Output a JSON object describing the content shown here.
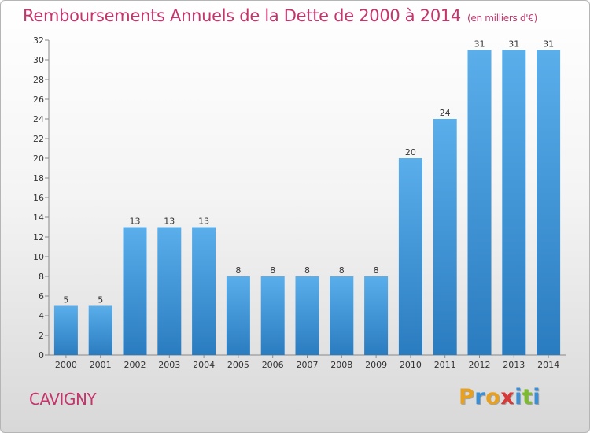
{
  "header": {
    "title": "Remboursements Annuels de la Dette de 2000 à 2014",
    "unit": "(en milliers d'€)"
  },
  "footer": {
    "commune": "CAVIGNY",
    "logo": "Proxiti"
  },
  "colors": {
    "title": "#c4356c",
    "bar_light": "#5aaeea",
    "bar_dark": "#2a7cc0",
    "logo_letters": [
      "#e8a020",
      "#3b8fd6",
      "#e8a020",
      "#d93838",
      "#3b8fd6",
      "#7cba2e",
      "#3b8fd6"
    ]
  },
  "chart_data": {
    "type": "bar",
    "title": "Remboursements Annuels de la Dette de 2000 à 2014",
    "xlabel": "",
    "ylabel": "",
    "categories": [
      "2000",
      "2001",
      "2002",
      "2003",
      "2004",
      "2005",
      "2006",
      "2007",
      "2008",
      "2009",
      "2010",
      "2011",
      "2012",
      "2013",
      "2014"
    ],
    "values": [
      5,
      5,
      13,
      13,
      13,
      8,
      8,
      8,
      8,
      8,
      20,
      24,
      31,
      31,
      31
    ],
    "ylim": [
      0,
      32
    ],
    "yticks": [
      0,
      2,
      4,
      6,
      8,
      10,
      12,
      14,
      16,
      18,
      20,
      22,
      24,
      26,
      28,
      30,
      32
    ],
    "grid": false,
    "legend": "none"
  }
}
